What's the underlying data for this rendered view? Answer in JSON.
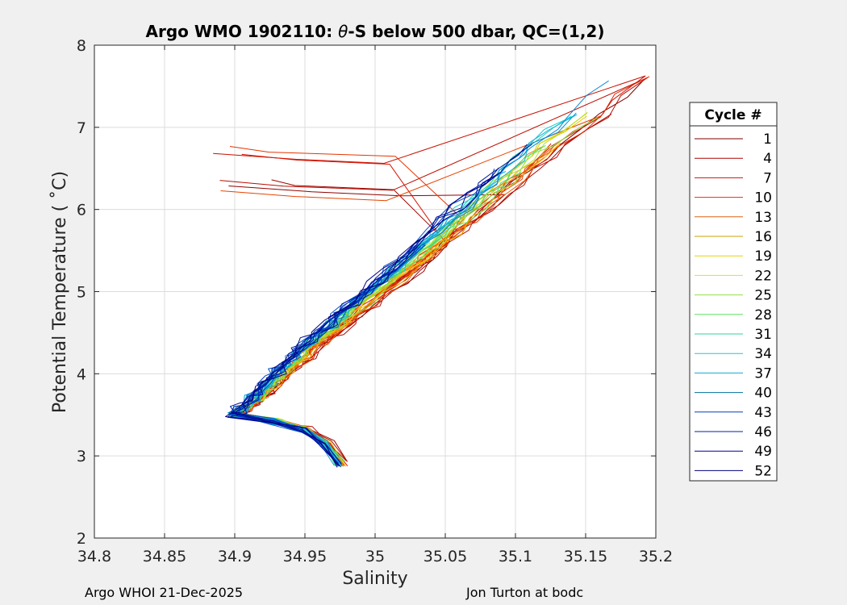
{
  "chart_data": {
    "type": "line",
    "title": "Argo WMO 1902110: θ-S below 500 dbar,  QC=(1,2)",
    "title_prefix": "Argo WMO 1902110: ",
    "title_theta": "θ",
    "title_suffix": "-S below 500 dbar,  QC=(1,2)",
    "xlabel": "Salinity",
    "ylabel": "Potential Temperature ( ˚C)",
    "xlim": [
      34.8,
      35.2
    ],
    "ylim": [
      2,
      8
    ],
    "xticks": [
      34.8,
      34.85,
      34.9,
      34.95,
      35,
      35.05,
      35.1,
      35.15,
      35.2
    ],
    "xtick_labels": [
      "34.8",
      "34.85",
      "34.9",
      "34.95",
      "35",
      "35.05",
      "35.1",
      "35.15",
      "35.2"
    ],
    "yticks": [
      2,
      3,
      4,
      5,
      6,
      7,
      8
    ],
    "ytick_labels": [
      "2",
      "3",
      "4",
      "5",
      "6",
      "7",
      "8"
    ],
    "grid": true,
    "legend": {
      "title": "Cycle #",
      "placement": "right",
      "entries": [
        "1",
        "4",
        "7",
        "10",
        "13",
        "16",
        "19",
        "22",
        "25",
        "28",
        "31",
        "34",
        "37",
        "40",
        "43",
        "46",
        "49",
        "52"
      ],
      "colors": [
        "#800000",
        "#b00000",
        "#d01010",
        "#e02e10",
        "#e06010",
        "#c8a000",
        "#e8d000",
        "#c8e840",
        "#90e040",
        "#60e060",
        "#30d0a0",
        "#20c8d0",
        "#10a8d0",
        "#0070a0",
        "#0040c0",
        "#0020a8",
        "#000090",
        "#000080"
      ]
    },
    "series_count": 54,
    "series_envelope": {
      "S": [
        34.9,
        34.91,
        34.92,
        34.93,
        34.94,
        34.95,
        34.965,
        34.98,
        35.0,
        35.02,
        35.04,
        35.06,
        35.08,
        35.1,
        35.12,
        35.15,
        35.18
      ],
      "T": [
        3.5,
        3.62,
        3.78,
        3.95,
        4.12,
        4.3,
        4.5,
        4.72,
        5.0,
        5.28,
        5.58,
        5.88,
        6.18,
        6.48,
        6.78,
        7.15,
        7.6
      ]
    },
    "deep_hook": {
      "S": [
        34.9,
        34.93,
        34.95,
        34.965,
        34.975
      ],
      "T": [
        3.5,
        3.42,
        3.32,
        3.15,
        2.9
      ]
    }
  },
  "footer": {
    "left": "Argo WHOI 21-Dec-2025",
    "right": "Jon Turton at bodc"
  }
}
